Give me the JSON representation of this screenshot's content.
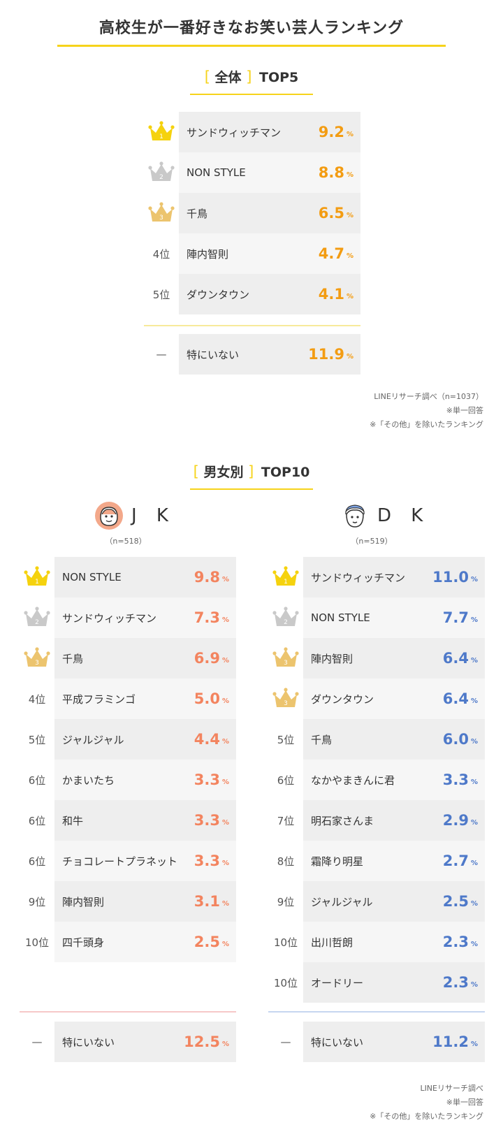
{
  "title": "高校生が一番好きなお笑い芸人ランキング",
  "colors": {
    "accent": "#f6d31b",
    "overall_value": "#f39c12",
    "jk_value": "#f3845f",
    "dk_value": "#4e79c9",
    "gold": "#f5d20e",
    "silver": "#c9c9c9",
    "bronze": "#ecc46e"
  },
  "overall": {
    "bracket_open": "[",
    "heading": "全体",
    "bracket_close": "]",
    "top_label": "TOP5",
    "rows": [
      {
        "rank": "1",
        "name": "サンドウィッチマン",
        "value": "9.2",
        "unit": "%",
        "icon": "gold-crown-icon"
      },
      {
        "rank": "2",
        "name": "NON STYLE",
        "value": "8.8",
        "unit": "%",
        "icon": "silver-crown-icon"
      },
      {
        "rank": "3",
        "name": "千鳥",
        "value": "6.5",
        "unit": "%",
        "icon": "bronze-crown-icon"
      },
      {
        "rank": "4位",
        "name": "陣内智則",
        "value": "4.7",
        "unit": "%"
      },
      {
        "rank": "5位",
        "name": "ダウンタウン",
        "value": "4.1",
        "unit": "%"
      }
    ],
    "none_row": {
      "rank": "—",
      "name": "特にいない",
      "value": "11.9",
      "unit": "%"
    },
    "notes": [
      "LINEリサーチ調べ（n=1037）",
      "※単一回答",
      "※「その他」を除いたランキング"
    ]
  },
  "gender": {
    "bracket_open": "[",
    "heading": "男女別",
    "bracket_close": "]",
    "top_label": "TOP10",
    "jk": {
      "label": "J K",
      "n": "（n=518）",
      "icon": "girl-face-icon",
      "rows": [
        {
          "rank": "1",
          "name": "NON STYLE",
          "value": "9.8",
          "unit": "%",
          "icon": "gold-crown-icon"
        },
        {
          "rank": "2",
          "name": "サンドウィッチマン",
          "value": "7.3",
          "unit": "%",
          "icon": "silver-crown-icon"
        },
        {
          "rank": "3",
          "name": "千鳥",
          "value": "6.9",
          "unit": "%",
          "icon": "bronze-crown-icon"
        },
        {
          "rank": "4位",
          "name": "平成フラミンゴ",
          "value": "5.0",
          "unit": "%"
        },
        {
          "rank": "5位",
          "name": "ジャルジャル",
          "value": "4.4",
          "unit": "%"
        },
        {
          "rank": "6位",
          "name": "かまいたち",
          "value": "3.3",
          "unit": "%"
        },
        {
          "rank": "6位",
          "name": "和牛",
          "value": "3.3",
          "unit": "%"
        },
        {
          "rank": "6位",
          "name": "チョコレートプラネット",
          "value": "3.3",
          "unit": "%"
        },
        {
          "rank": "9位",
          "name": "陣内智則",
          "value": "3.1",
          "unit": "%"
        },
        {
          "rank": "10位",
          "name": "四千頭身",
          "value": "2.5",
          "unit": "%"
        }
      ],
      "none_row": {
        "rank": "—",
        "name": "特にいない",
        "value": "12.5",
        "unit": "%"
      }
    },
    "dk": {
      "label": "D K",
      "n": "（n=519）",
      "icon": "boy-face-icon",
      "rows": [
        {
          "rank": "1",
          "name": "サンドウィッチマン",
          "value": "11.0",
          "unit": "%",
          "icon": "gold-crown-icon"
        },
        {
          "rank": "2",
          "name": "NON STYLE",
          "value": "7.7",
          "unit": "%",
          "icon": "silver-crown-icon"
        },
        {
          "rank": "3",
          "name": "陣内智則",
          "value": "6.4",
          "unit": "%",
          "icon": "bronze-crown-icon"
        },
        {
          "rank": "3",
          "name": "ダウンタウン",
          "value": "6.4",
          "unit": "%",
          "icon": "bronze-crown-icon"
        },
        {
          "rank": "5位",
          "name": "千鳥",
          "value": "6.0",
          "unit": "%"
        },
        {
          "rank": "6位",
          "name": "なかやまきんに君",
          "value": "3.3",
          "unit": "%"
        },
        {
          "rank": "7位",
          "name": "明石家さんま",
          "value": "2.9",
          "unit": "%"
        },
        {
          "rank": "8位",
          "name": "霜降り明星",
          "value": "2.7",
          "unit": "%"
        },
        {
          "rank": "9位",
          "name": "ジャルジャル",
          "value": "2.5",
          "unit": "%"
        },
        {
          "rank": "10位",
          "name": "出川哲朗",
          "value": "2.3",
          "unit": "%"
        },
        {
          "rank": "10位",
          "name": "オードリー",
          "value": "2.3",
          "unit": "%"
        }
      ],
      "none_row": {
        "rank": "—",
        "name": "特にいない",
        "value": "11.2",
        "unit": "%"
      }
    },
    "notes": [
      "LINEリサーチ調べ",
      "※単一回答",
      "※「その他」を除いたランキング"
    ]
  },
  "chart_data": [
    {
      "type": "table",
      "title": "全体 TOP5",
      "columns": [
        "rank",
        "name",
        "percent"
      ],
      "rows": [
        [
          "1",
          "サンドウィッチマン",
          9.2
        ],
        [
          "2",
          "NON STYLE",
          8.8
        ],
        [
          "3",
          "千鳥",
          6.5
        ],
        [
          "4位",
          "陣内智則",
          4.7
        ],
        [
          "5位",
          "ダウンタウン",
          4.1
        ],
        [
          "—",
          "特にいない",
          11.9
        ]
      ]
    },
    {
      "type": "table",
      "title": "J K",
      "columns": [
        "rank",
        "name",
        "percent"
      ],
      "rows": [
        [
          "1",
          "NON STYLE",
          9.8
        ],
        [
          "2",
          "サンドウィッチマン",
          7.3
        ],
        [
          "3",
          "千鳥",
          6.9
        ],
        [
          "4位",
          "平成フラミンゴ",
          5.0
        ],
        [
          "5位",
          "ジャルジャル",
          4.4
        ],
        [
          "6位",
          "かまいたち",
          3.3
        ],
        [
          "6位",
          "和牛",
          3.3
        ],
        [
          "6位",
          "チョコレートプラネット",
          3.3
        ],
        [
          "9位",
          "陣内智則",
          3.1
        ],
        [
          "10位",
          "四千頭身",
          2.5
        ],
        [
          "—",
          "特にいない",
          12.5
        ]
      ]
    },
    {
      "type": "table",
      "title": "D K",
      "columns": [
        "rank",
        "name",
        "percent"
      ],
      "rows": [
        [
          "1",
          "サンドウィッチマン",
          11.0
        ],
        [
          "2",
          "NON STYLE",
          7.7
        ],
        [
          "3",
          "陣内智則",
          6.4
        ],
        [
          "3",
          "ダウンタウン",
          6.4
        ],
        [
          "5位",
          "千鳥",
          6.0
        ],
        [
          "6位",
          "なかやまきんに君",
          3.3
        ],
        [
          "7位",
          "明石家さんま",
          2.9
        ],
        [
          "8位",
          "霜降り明星",
          2.7
        ],
        [
          "9位",
          "ジャルジャル",
          2.5
        ],
        [
          "10位",
          "出川哲朗",
          2.3
        ],
        [
          "10位",
          "オードリー",
          2.3
        ],
        [
          "—",
          "特にいない",
          11.2
        ]
      ]
    }
  ]
}
